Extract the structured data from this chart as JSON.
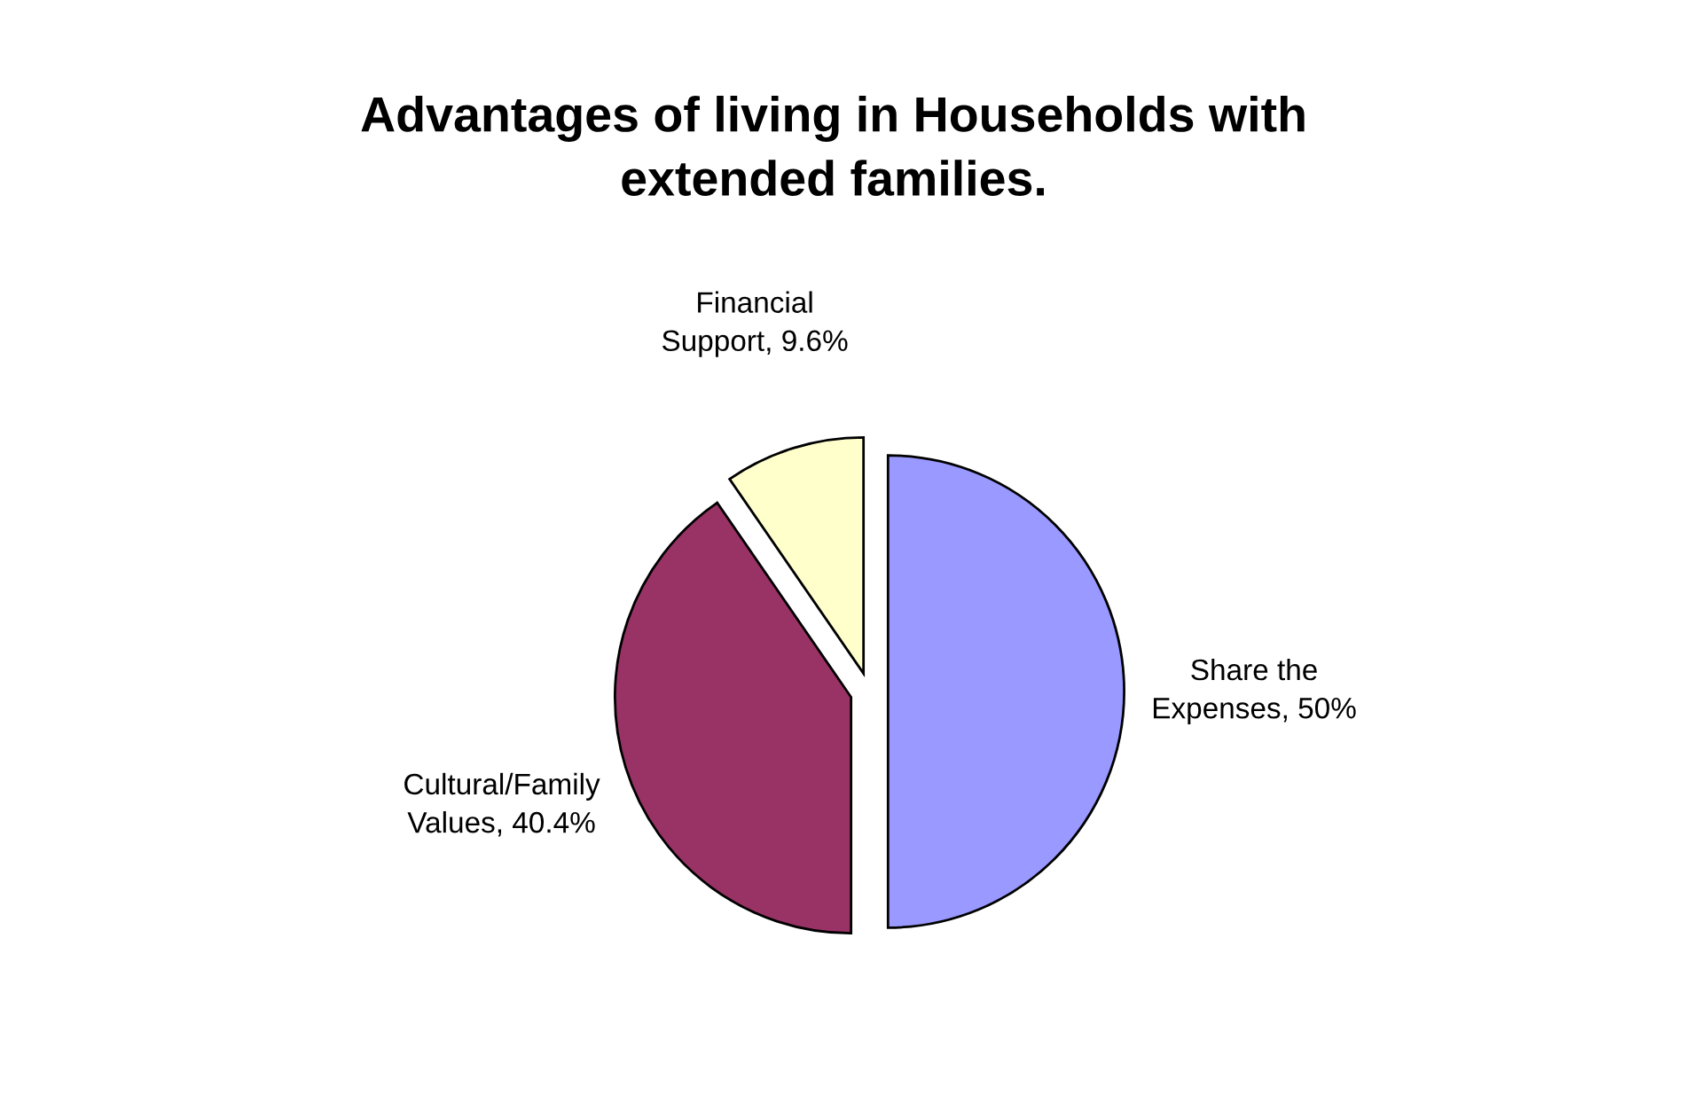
{
  "chart_data": {
    "type": "pie",
    "title": "Advantages of living in Households with\nextended families.",
    "categories": [
      "Share the Expenses",
      "Cultural/Family Values",
      "Financial Support"
    ],
    "values": [
      50,
      40.4,
      9.6
    ],
    "value_labels": [
      "50%",
      "40.4%",
      "9.6%"
    ],
    "colors": [
      "#9999ff",
      "#993366",
      "#ffffcc"
    ]
  }
}
